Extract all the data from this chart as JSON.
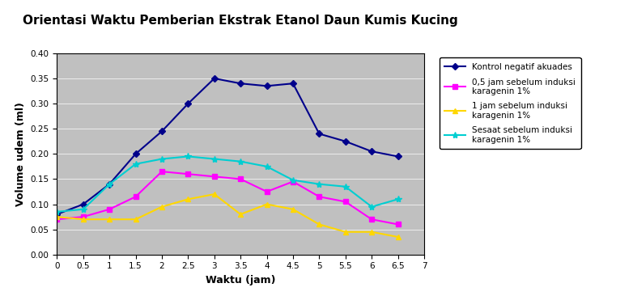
{
  "title": "Orientasi Waktu Pemberian Ekstrak Etanol Daun Kumis Kucing",
  "xlabel": "Waktu (jam)",
  "ylabel": "Volume udem (ml)",
  "x": [
    0,
    0.5,
    1,
    1.5,
    2,
    2.5,
    3,
    3.5,
    4,
    4.5,
    5,
    5.5,
    6,
    6.5
  ],
  "series": [
    {
      "label": "Kontrol negatif akuades",
      "color": "#00008B",
      "marker": "D",
      "markersize": 4,
      "linewidth": 1.5,
      "values": [
        0.08,
        0.1,
        0.14,
        0.2,
        0.245,
        0.3,
        0.35,
        0.34,
        0.335,
        0.34,
        0.24,
        0.225,
        0.205,
        0.195
      ]
    },
    {
      "label": "0,5 jam sebelum induksi\nkaragenin 1%",
      "color": "#FF00FF",
      "marker": "s",
      "markersize": 4,
      "linewidth": 1.5,
      "values": [
        0.07,
        0.075,
        0.09,
        0.115,
        0.165,
        0.16,
        0.155,
        0.15,
        0.125,
        0.145,
        0.115,
        0.105,
        0.07,
        0.06
      ]
    },
    {
      "label": "1 jam sebelum induksi\nkaragenin 1%",
      "color": "#FFD700",
      "marker": "^",
      "markersize": 5,
      "linewidth": 1.5,
      "values": [
        0.075,
        0.07,
        0.07,
        0.07,
        0.095,
        0.11,
        0.12,
        0.08,
        0.1,
        0.09,
        0.06,
        0.045,
        0.045,
        0.035
      ]
    },
    {
      "label": "Sesaat sebelum induksi\nkaragenin 1%",
      "color": "#00CED1",
      "marker": "*",
      "markersize": 6,
      "linewidth": 1.5,
      "values": [
        0.085,
        0.09,
        0.14,
        0.18,
        0.19,
        0.195,
        0.19,
        0.185,
        0.175,
        0.148,
        0.14,
        0.135,
        0.095,
        0.11
      ]
    }
  ],
  "xlim": [
    0,
    7
  ],
  "ylim": [
    0.0,
    0.4
  ],
  "yticks": [
    0.0,
    0.05,
    0.1,
    0.15,
    0.2,
    0.25,
    0.3,
    0.35,
    0.4
  ],
  "xticks": [
    0,
    0.5,
    1,
    1.5,
    2,
    2.5,
    3,
    3.5,
    4,
    4.5,
    5,
    5.5,
    6,
    6.5,
    7
  ],
  "plot_bg": "#C0C0C0",
  "fig_bg": "#FFFFFF",
  "legend_fontsize": 7.5,
  "title_fontsize": 11,
  "axis_label_fontsize": 9,
  "tick_fontsize": 7.5
}
